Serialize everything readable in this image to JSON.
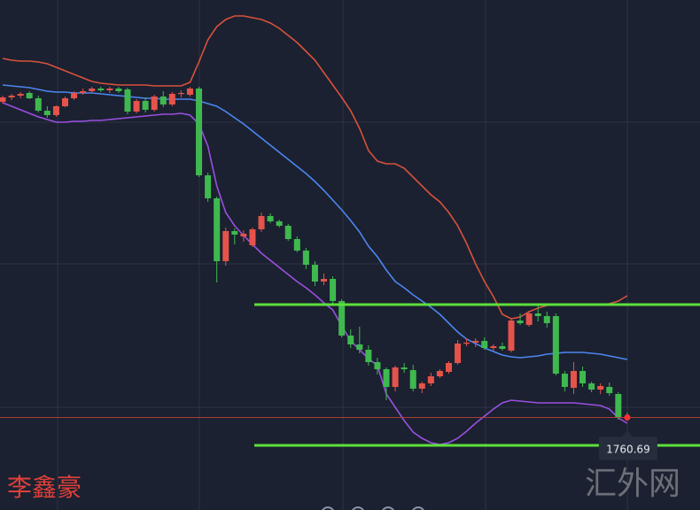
{
  "chart_data": {
    "type": "candlestick",
    "ylim": [
      1739.8,
      1855
    ],
    "up_color": "#e5534b",
    "down_color": "#3fb94f",
    "open": [
      1832.0,
      1833.0,
      1833.4,
      1834.0,
      1832.8,
      1830.0,
      1829.0,
      1831.0,
      1832.8,
      1834.0,
      1834.4,
      1835.0,
      1834.6,
      1835.0,
      1834.8,
      1829.8,
      1832.2,
      1830.2,
      1833.2,
      1831.4,
      1833.8,
      1833.6,
      1835.0,
      1815.4,
      1810.2,
      1796.0,
      1802.8,
      1801.6,
      1799.6,
      1803.2,
      1806.2,
      1805.0,
      1804.0,
      1801.0,
      1798.4,
      1795.2,
      1791.4,
      1792.0,
      1787.0,
      1779.2,
      1777.2,
      1776.0,
      1773.2,
      1771.6,
      1767.6,
      1772.0,
      1771.4,
      1767.2,
      1768.4,
      1770.0,
      1771.0,
      1773.0,
      1777.4,
      1777.6,
      1778.0,
      1776.4,
      1776.8,
      1775.8,
      1782.6,
      1781.6,
      1784.2,
      1783.6,
      1783.6,
      1770.6,
      1767.4,
      1771.2,
      1768.4,
      1767.0,
      1767.6,
      1766.0,
      1760.8
    ],
    "high": [
      1833.4,
      1833.8,
      1834.2,
      1834.4,
      1833.4,
      1831.0,
      1831.2,
      1833.2,
      1834.4,
      1835.0,
      1835.4,
      1835.4,
      1835.4,
      1835.4,
      1835.2,
      1832.6,
      1833.0,
      1833.6,
      1834.4,
      1834.2,
      1834.6,
      1835.4,
      1835.4,
      1816.0,
      1810.6,
      1803.6,
      1803.4,
      1803.0,
      1803.6,
      1807.0,
      1806.8,
      1805.4,
      1804.4,
      1801.6,
      1799.0,
      1796.0,
      1793.2,
      1792.6,
      1787.4,
      1780.6,
      1781.2,
      1777.0,
      1774.2,
      1772.0,
      1772.4,
      1773.0,
      1772.6,
      1768.8,
      1770.8,
      1771.6,
      1773.4,
      1778.2,
      1778.6,
      1778.6,
      1778.8,
      1777.2,
      1777.6,
      1783.2,
      1784.2,
      1784.8,
      1786.0,
      1784.6,
      1784.2,
      1771.2,
      1773.2,
      1772.2,
      1768.8,
      1768.4,
      1768.6,
      1766.4,
      1761.8
    ],
    "low": [
      1831.6,
      1832.4,
      1832.8,
      1832.6,
      1829.6,
      1828.4,
      1828.6,
      1830.8,
      1832.4,
      1833.6,
      1834.0,
      1834.2,
      1834.0,
      1834.0,
      1829.2,
      1829.4,
      1829.6,
      1829.8,
      1830.8,
      1831.0,
      1833.0,
      1833.2,
      1815.0,
      1809.4,
      1791.2,
      1795.0,
      1799.8,
      1800.4,
      1799.2,
      1802.6,
      1804.6,
      1803.6,
      1800.6,
      1798.0,
      1794.2,
      1790.4,
      1790.6,
      1786.0,
      1778.8,
      1776.4,
      1775.2,
      1772.4,
      1770.4,
      1764.6,
      1766.6,
      1770.8,
      1766.6,
      1766.2,
      1767.8,
      1769.6,
      1770.6,
      1772.6,
      1776.8,
      1776.6,
      1776.0,
      1775.8,
      1775.8,
      1775.4,
      1781.6,
      1781.2,
      1782.4,
      1781.0,
      1770.2,
      1766.6,
      1766.0,
      1767.6,
      1766.4,
      1766.0,
      1765.6,
      1760.2,
      1760.0
    ],
    "close": [
      1833.0,
      1833.4,
      1833.8,
      1832.8,
      1830.0,
      1829.0,
      1831.0,
      1832.8,
      1834.0,
      1834.4,
      1835.0,
      1834.6,
      1835.0,
      1834.4,
      1829.8,
      1832.2,
      1830.2,
      1833.2,
      1831.4,
      1833.8,
      1834.0,
      1835.0,
      1815.4,
      1810.2,
      1796.0,
      1802.8,
      1802.0,
      1802.2,
      1803.2,
      1806.2,
      1805.0,
      1804.0,
      1801.0,
      1798.4,
      1795.2,
      1791.4,
      1792.0,
      1787.0,
      1779.2,
      1777.2,
      1776.0,
      1773.2,
      1771.6,
      1767.6,
      1772.0,
      1771.6,
      1767.2,
      1768.4,
      1770.0,
      1771.2,
      1773.0,
      1777.4,
      1777.6,
      1778.0,
      1776.4,
      1776.8,
      1776.2,
      1782.6,
      1782.0,
      1784.2,
      1783.6,
      1782.0,
      1770.6,
      1767.6,
      1771.2,
      1768.4,
      1767.0,
      1767.8,
      1766.2,
      1760.8,
      1760.69
    ],
    "bands": [
      {
        "color": "#d9513c",
        "values": [
          1841.8,
          1841.4,
          1841.2,
          1841.2,
          1841.0,
          1840.6,
          1839.8,
          1839.0,
          1838.2,
          1837.4,
          1836.6,
          1836.2,
          1836.0,
          1835.8,
          1835.8,
          1835.8,
          1835.8,
          1835.6,
          1835.6,
          1835.6,
          1835.6,
          1836.4,
          1841.0,
          1846.0,
          1849.0,
          1850.6,
          1851.4,
          1851.4,
          1851.0,
          1850.6,
          1849.8,
          1848.6,
          1847.0,
          1845.4,
          1843.4,
          1841.4,
          1838.6,
          1835.8,
          1833.0,
          1830.0,
          1826.0,
          1821.0,
          1818.6,
          1818.0,
          1818.0,
          1817.0,
          1815.0,
          1813.0,
          1811.0,
          1809.4,
          1807.0,
          1804.0,
          1800.0,
          1795.4,
          1791.4,
          1788.0,
          1784.0,
          1783.0,
          1783.4,
          1784.6,
          1785.4,
          1786.0,
          1786.2,
          1786.2,
          1786.2,
          1786.2,
          1786.2,
          1786.2,
          1786.4,
          1787.0,
          1788.2
        ]
      },
      {
        "color": "#4c86f0",
        "values": [
          1835.8,
          1835.6,
          1835.4,
          1835.2,
          1834.8,
          1834.4,
          1834.2,
          1834.2,
          1834.0,
          1834.0,
          1834.0,
          1833.8,
          1833.6,
          1833.4,
          1833.2,
          1833.0,
          1832.8,
          1832.8,
          1832.6,
          1832.6,
          1832.6,
          1832.6,
          1832.2,
          1831.6,
          1831.0,
          1829.8,
          1828.4,
          1827.0,
          1825.4,
          1823.8,
          1822.2,
          1820.6,
          1819.0,
          1817.4,
          1815.8,
          1814.0,
          1812.0,
          1809.8,
          1807.6,
          1805.2,
          1802.6,
          1799.4,
          1797.0,
          1794.0,
          1791.4,
          1790.0,
          1788.4,
          1787.0,
          1785.6,
          1784.0,
          1782.0,
          1780.0,
          1778.4,
          1777.4,
          1776.4,
          1775.6,
          1774.8,
          1774.4,
          1774.2,
          1774.4,
          1774.6,
          1775.0,
          1775.2,
          1775.4,
          1775.4,
          1775.4,
          1775.2,
          1775.0,
          1774.6,
          1774.2,
          1773.8
        ]
      },
      {
        "color": "#9b4fe0",
        "values": [
          1831.8,
          1831.0,
          1830.2,
          1829.4,
          1828.6,
          1828.0,
          1827.4,
          1827.4,
          1827.6,
          1827.6,
          1827.8,
          1827.8,
          1828.0,
          1828.2,
          1828.4,
          1828.6,
          1828.8,
          1829.0,
          1829.2,
          1829.2,
          1829.4,
          1829.0,
          1827.0,
          1822.0,
          1813.0,
          1807.0,
          1804.0,
          1801.8,
          1799.8,
          1797.8,
          1796.2,
          1794.6,
          1793.0,
          1791.4,
          1790.0,
          1788.4,
          1786.6,
          1785.0,
          1781.4,
          1778.0,
          1776.0,
          1774.0,
          1772.4,
          1766.0,
          1763.0,
          1760.0,
          1757.4,
          1756.0,
          1755.0,
          1754.6,
          1755.0,
          1756.0,
          1757.6,
          1759.4,
          1761.0,
          1762.6,
          1764.0,
          1764.6,
          1764.4,
          1764.2,
          1764.0,
          1764.0,
          1764.0,
          1764.0,
          1764.0,
          1763.8,
          1763.6,
          1763.4,
          1762.6,
          1760.6,
          1759.4
        ]
      }
    ],
    "levels": [
      {
        "value": 1786.2,
        "color": "#5de03a"
      },
      {
        "value": 1754.4,
        "color": "#5de03a"
      }
    ],
    "last_price": 1760.69,
    "last_price_color": "#c0403c",
    "author": "李鑫豪",
    "watermark": "汇外网"
  }
}
